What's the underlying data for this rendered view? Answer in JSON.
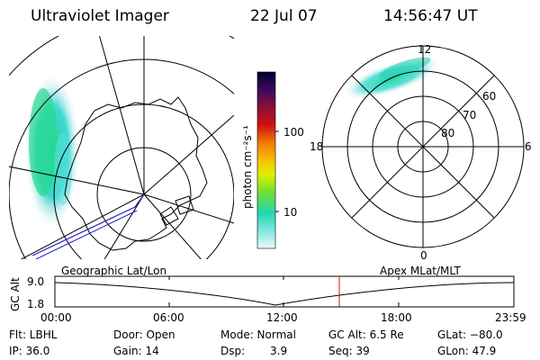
{
  "header": {
    "instrument": "Ultraviolet Imager",
    "date": "22 Jul 07",
    "time": "14:56:47 UT"
  },
  "colorbar": {
    "unit_label": "photon cm⁻²s⁻¹",
    "ticks": [
      "100",
      "10"
    ],
    "colors": [
      "#000030",
      "#2a0a50",
      "#5a0f5a",
      "#8a0f3a",
      "#c41010",
      "#e8200a",
      "#f37a05",
      "#f6c000",
      "#e0f000",
      "#8af020",
      "#30e060",
      "#20d8b0",
      "#80e8e0",
      "#e8f4f6"
    ]
  },
  "polar_plot": {
    "top_label": "12",
    "bottom_label": "0",
    "left_label": "18",
    "right_label": "6",
    "lat_labels": [
      "60",
      "70",
      "80"
    ]
  },
  "timeline": {
    "left_title": "Geographic Lat/Lon",
    "right_title": "Apex MLat/MLT",
    "y_axis_label": "GC Alt",
    "y_ticks": [
      "9.0",
      "1.8"
    ],
    "x_ticks": [
      "00:00",
      "06:00",
      "12:00",
      "18:00",
      "23:59"
    ]
  },
  "info": {
    "flt": "Flt: LBHL",
    "door": "Door: Open",
    "mode": "Mode: Normal",
    "gc_alt": "GC Alt: 6.5 Re",
    "glat": "GLat: −80.0",
    "ip": "IP: 36.0",
    "gain": "Gain: 14",
    "dsp_label": "Dsp:",
    "dsp_value": "3.9",
    "seq": "Seq: 39",
    "glon": "GLon:  47.9"
  }
}
